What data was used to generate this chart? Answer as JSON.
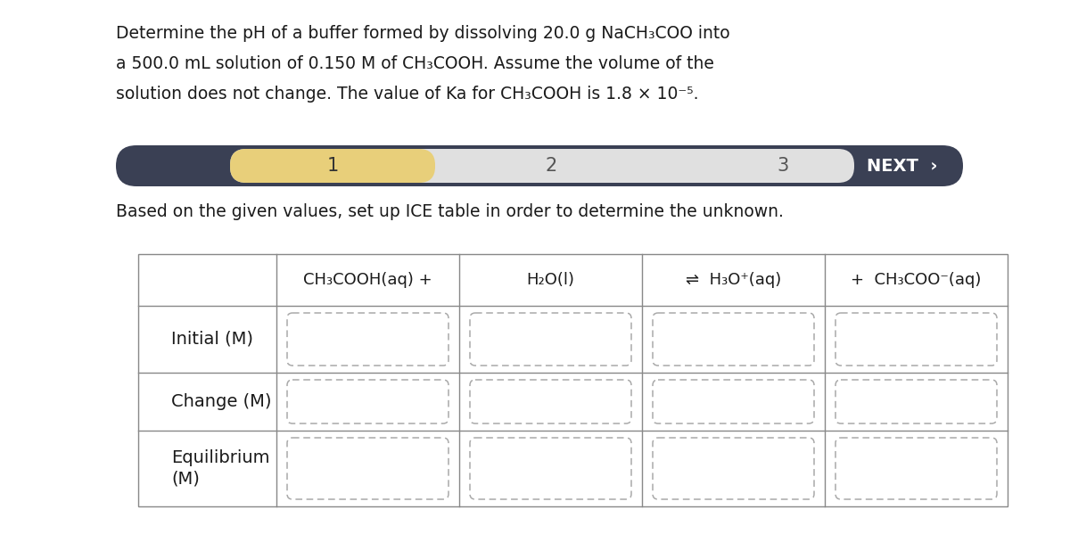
{
  "title_line1": "Determine the pH of a buffer formed by dissolving 20.0 g NaCH₃COO into",
  "title_line2": "a 500.0 mL solution of 0.150 M of CH₃COOH. Assume the volume of the",
  "title_line3": "solution does not change. The value of Ka for CH₃COOH is 1.8 × 10⁻⁵.",
  "nav_bg_color": "#3a4054",
  "nav_step1_color": "#e8cf7a",
  "nav_light_bg": "#e0e0e0",
  "nav_next_text": "NEXT  ›",
  "instruction": "Based on the given values, set up ICE table in order to determine the unknown.",
  "col_headers": [
    "CH₃COOH(aq) +",
    "H₂O(l)",
    "⇌  H₃O⁺(aq)",
    "+  CH₃COO⁻(aq)"
  ],
  "row_labels": [
    "Initial (M)",
    "Change (M)",
    "Equilibrium\n(M)"
  ],
  "bg_color": "#ffffff",
  "title_fontsize": 13.5,
  "instruction_fontsize": 13.5,
  "table_label_fontsize": 14,
  "table_header_fontsize": 13,
  "nav_fontsize": 15
}
